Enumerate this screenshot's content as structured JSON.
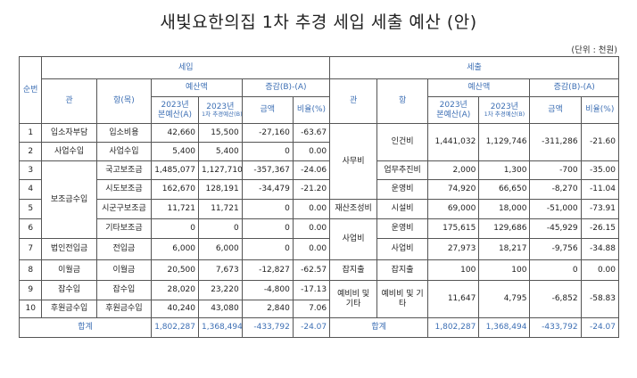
{
  "title": "새빛요한의집 1차 추경 세입 세출 예산 (안)",
  "unit": "(단위 : 천원)",
  "headers": {
    "seq": "순번",
    "income": "세입",
    "expense": "세출",
    "gwan": "관",
    "hang_income": "항(목)",
    "hang_expense": "항",
    "budget": "예산액",
    "change": "증감(B)-(A)",
    "y2023_main": "2023년",
    "main_budget": "본예산(A)",
    "y2023_supp": "2023년",
    "supp_budget": "1차 추경예산(B)",
    "amount": "금액",
    "ratio": "비율(%)"
  },
  "income_rows": [
    {
      "no": "1",
      "gwan": "입소자부담",
      "hang": "입소비용",
      "a": "42,660",
      "b": "15,500",
      "diff": "-27,160",
      "ratio": "-63.67"
    },
    {
      "no": "2",
      "gwan": "사업수입",
      "hang": "사업수입",
      "a": "5,400",
      "b": "5,400",
      "diff": "0",
      "ratio": "0.00"
    },
    {
      "no": "3",
      "gwan": "보조금수입",
      "hang": "국고보조금",
      "a": "1,485,077",
      "b": "1,127,710",
      "diff": "-357,367",
      "ratio": "-24.06"
    },
    {
      "no": "4",
      "gwan": "",
      "hang": "시도보조금",
      "a": "162,670",
      "b": "128,191",
      "diff": "-34,479",
      "ratio": "-21.20"
    },
    {
      "no": "5",
      "gwan": "",
      "hang": "시군구보조금",
      "a": "11,721",
      "b": "11,721",
      "diff": "0",
      "ratio": "0.00"
    },
    {
      "no": "6",
      "gwan": "",
      "hang": "기타보조금",
      "a": "0",
      "b": "0",
      "diff": "0",
      "ratio": "0.00"
    },
    {
      "no": "7",
      "gwan": "법인전입금",
      "hang": "전입금",
      "a": "6,000",
      "b": "6,000",
      "diff": "0",
      "ratio": "0.00"
    },
    {
      "no": "8",
      "gwan": "이월금",
      "hang": "이월금",
      "a": "20,500",
      "b": "7,673",
      "diff": "-12,827",
      "ratio": "-62.57"
    },
    {
      "no": "9",
      "gwan": "잡수입",
      "hang": "잡수입",
      "a": "28,020",
      "b": "23,220",
      "diff": "-4,800",
      "ratio": "-17.13"
    },
    {
      "no": "10",
      "gwan": "후원금수입",
      "hang": "후원금수입",
      "a": "40,240",
      "b": "43,080",
      "diff": "2,840",
      "ratio": "7.06"
    }
  ],
  "expense_rows": [
    {
      "gwan": "사무비",
      "hang": "인건비",
      "a": "1,441,032",
      "b": "1,129,746",
      "diff": "-311,286",
      "ratio": "-21.60"
    },
    {
      "gwan": "",
      "hang": "업무추진비",
      "a": "2,000",
      "b": "1,300",
      "diff": "-700",
      "ratio": "-35.00"
    },
    {
      "gwan": "",
      "hang": "운영비",
      "a": "74,920",
      "b": "66,650",
      "diff": "-8,270",
      "ratio": "-11.04"
    },
    {
      "gwan": "재산조성비",
      "hang": "시설비",
      "a": "69,000",
      "b": "18,000",
      "diff": "-51,000",
      "ratio": "-73.91"
    },
    {
      "gwan": "사업비",
      "hang": "운영비",
      "a": "175,615",
      "b": "129,686",
      "diff": "-45,929",
      "ratio": "-26.15"
    },
    {
      "gwan": "",
      "hang": "사업비",
      "a": "27,973",
      "b": "18,217",
      "diff": "-9,756",
      "ratio": "-34.88"
    },
    {
      "gwan": "잡지출",
      "hang": "잡지출",
      "a": "100",
      "b": "100",
      "diff": "0",
      "ratio": "0.00"
    },
    {
      "gwan": "예비비 및 기타",
      "hang": "예비비 및 기타",
      "a": "11,647",
      "b": "4,795",
      "diff": "-6,852",
      "ratio": "-58.83"
    }
  ],
  "totals": {
    "label_income": "합계",
    "income_a": "1,802,287",
    "income_b": "1,368,494",
    "income_diff": "-433,792",
    "income_ratio": "-24.07",
    "label_expense": "합계",
    "expense_a": "1,802,287",
    "expense_b": "1,368,494",
    "expense_diff": "-433,792",
    "expense_ratio": "-24.07"
  }
}
